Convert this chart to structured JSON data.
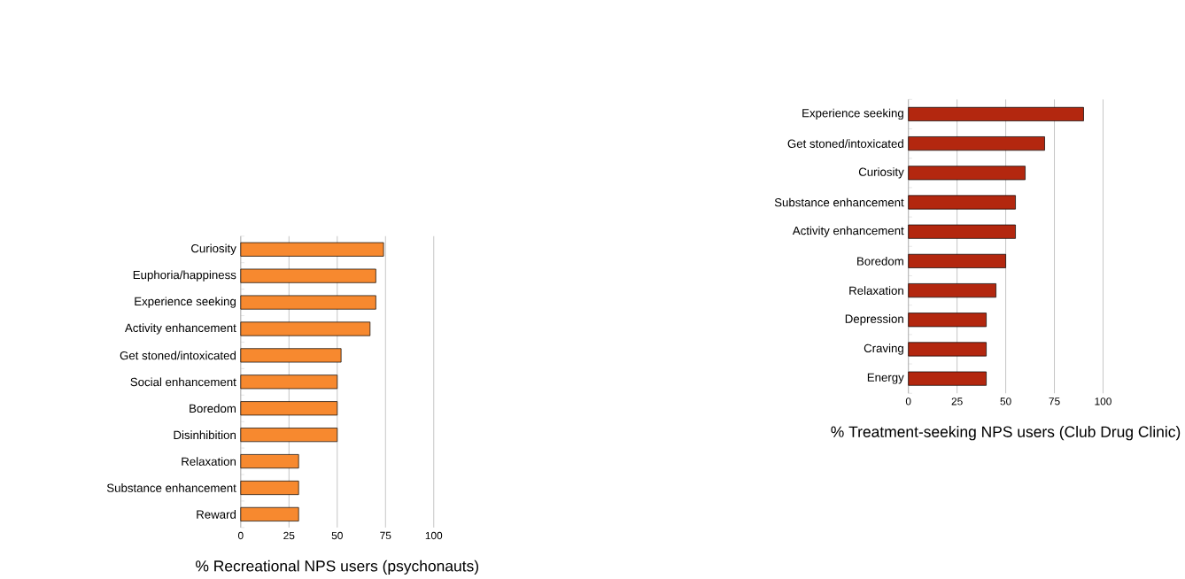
{
  "chart_data": [
    {
      "type": "bar",
      "orientation": "horizontal",
      "xlabel": "% Recreational NPS users (psychonauts)",
      "categories": [
        "Curiosity",
        "Euphoria/happiness",
        "Experience seeking",
        "Activity enhancement",
        "Get stoned/intoxicated",
        "Social enhancement",
        "Boredom",
        "Disinhibition",
        "Relaxation",
        "Substance enhancement",
        "Reward"
      ],
      "values": [
        74,
        70,
        70,
        67,
        52,
        50,
        50,
        50,
        30,
        30,
        30
      ],
      "color": "#f7892f",
      "xlim": [
        0,
        100
      ],
      "xticks": [
        0,
        25,
        50,
        75,
        100
      ],
      "grid": "x"
    },
    {
      "type": "bar",
      "orientation": "horizontal",
      "xlabel": "% Treatment-seeking NPS users (Club Drug Clinic)",
      "categories": [
        "Experience seeking",
        "Get stoned/intoxicated",
        "Curiosity",
        "Substance enhancement",
        "Activity enhancement",
        "Boredom",
        "Relaxation",
        "Depression",
        "Craving",
        "Energy"
      ],
      "values": [
        90,
        70,
        60,
        55,
        55,
        50,
        45,
        40,
        40,
        40
      ],
      "color": "#b3270f",
      "xlim": [
        0,
        100
      ],
      "xticks": [
        0,
        25,
        50,
        75,
        100
      ],
      "grid": "x"
    }
  ]
}
